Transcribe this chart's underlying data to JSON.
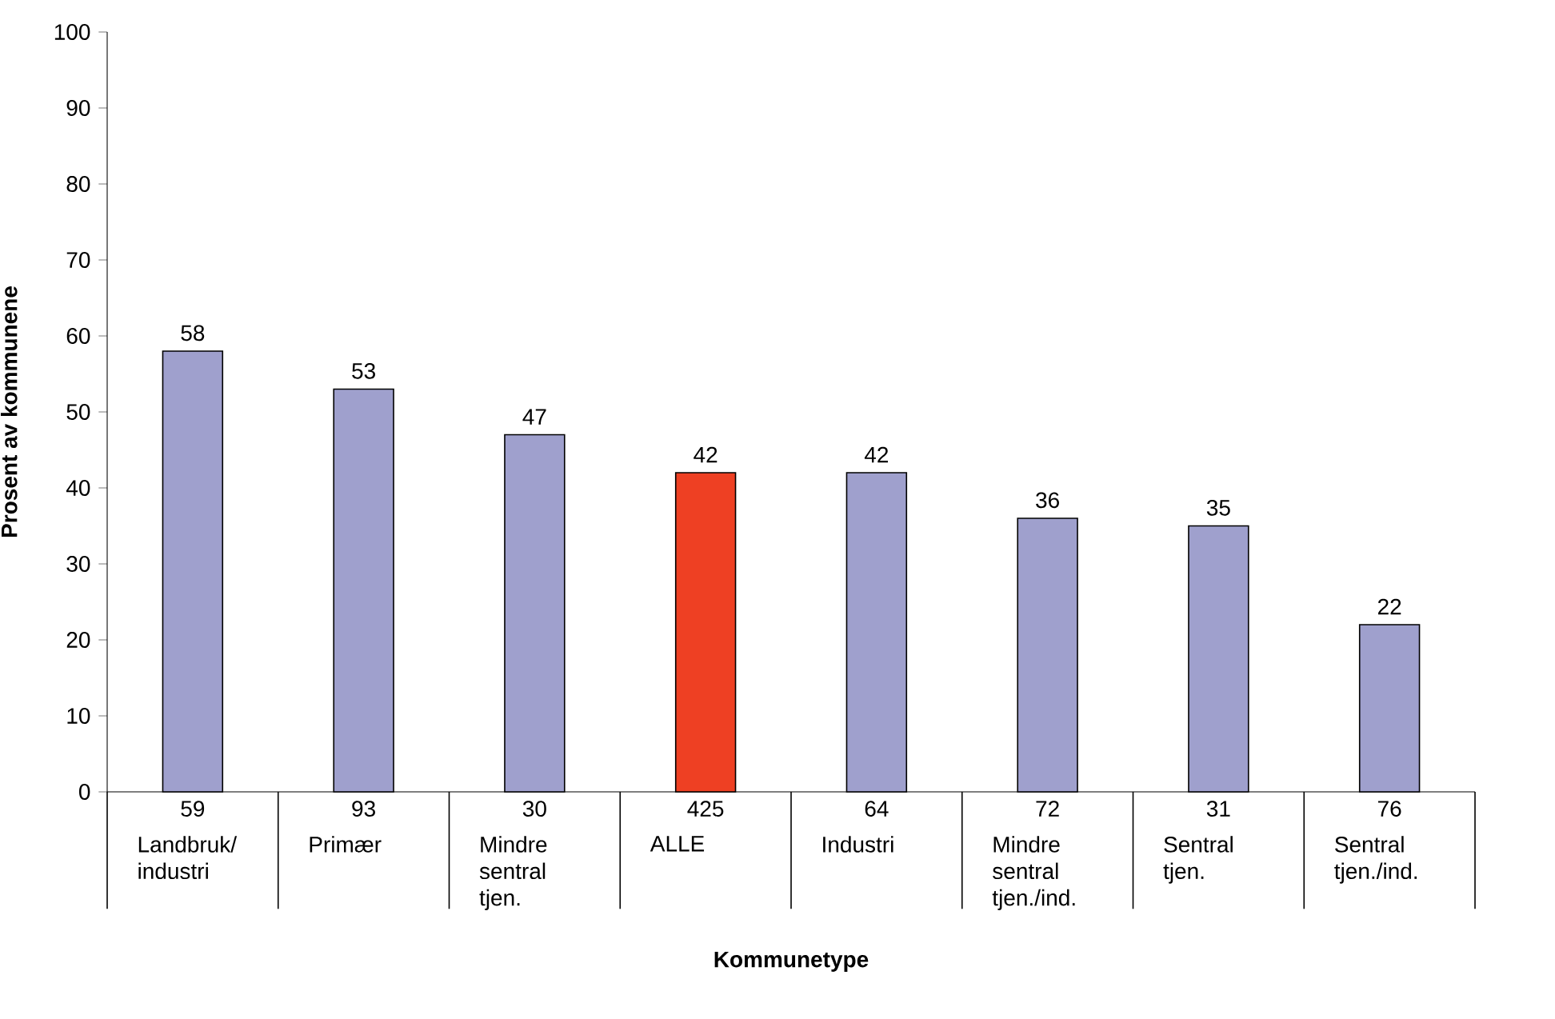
{
  "chart_data": {
    "type": "bar",
    "xlabel": "Kommunetype",
    "ylabel": "Prosent av kommunene",
    "categories": [
      "Landbruk/ industri",
      "Primær",
      "Mindre sentral tjen.",
      "ALLE",
      "Industri",
      "Mindre sentral tjen./ind.",
      "Sentral tjen.",
      "Sentral tjen./ind."
    ],
    "values": [
      58,
      53,
      47,
      42,
      42,
      36,
      35,
      22
    ],
    "colors": [
      "#9fa0cd",
      "#9fa0cd",
      "#9fa0cd",
      "#ee4023",
      "#9fa0cd",
      "#9fa0cd",
      "#9fa0cd",
      "#9fa0cd"
    ],
    "data_labels": true,
    "ylim": [
      0,
      100
    ],
    "yticks": [
      0,
      10,
      20,
      30,
      40,
      50,
      60,
      70,
      80,
      90,
      100
    ],
    "annotations": [
      "59",
      "93",
      "30",
      "425",
      "64",
      "72",
      "31",
      "76"
    ]
  }
}
